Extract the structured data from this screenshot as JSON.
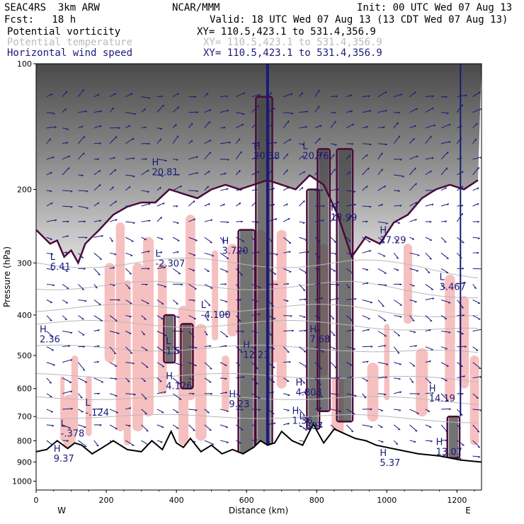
{
  "header": {
    "model": "SEAC4RS  3km ARW",
    "org": "NCAR/MMM",
    "init": "Init: 00 UTC Wed 07 Aug 13",
    "fcst": "Fcst:   18 h",
    "valid": "Valid: 18 UTC Wed 07 Aug 13 (13 CDT Wed 07 Aug 13)"
  },
  "legend": [
    {
      "name": "Potential vorticity",
      "xy": "XY= 110.5,423.1 to 531.4,356.9",
      "color": "#000000"
    },
    {
      "name": "Potential temperature",
      "xy": "XY= 110.5,423.1 to 531.4,356.9",
      "color": "#bbbbbb"
    },
    {
      "name": "Horizontal wind speed",
      "xy": "XY= 110.5,423.1 to 531.4,356.9",
      "color": "#1a1a7a"
    }
  ],
  "colors": {
    "pv_shade_pink": "#f7c0c0",
    "pv_contour": "#4a0a3a",
    "pv_dark_fill": "#444444",
    "theta_contour": "#b8b8b8",
    "wind_barbs": "#1a1a7a",
    "terrain": "#000000"
  },
  "chart_data": {
    "type": "cross-section",
    "xlabel": "Distance (km)",
    "ylabel": "Pressure (hPa)",
    "xlim": [
      0,
      1270
    ],
    "ylim": [
      1050,
      100
    ],
    "y_scale": "log-pressure",
    "x_ticks": [
      0,
      200,
      400,
      600,
      800,
      1000,
      1200
    ],
    "x_tick_labels": [
      "0",
      "200",
      "400",
      "600",
      "800",
      "1000",
      "1200"
    ],
    "y_ticks": [
      100,
      200,
      300,
      400,
      500,
      600,
      700,
      800,
      900,
      1000
    ],
    "y_tick_labels": [
      "100",
      "200",
      "300",
      "400",
      "500",
      "600",
      "700",
      "800",
      "900",
      "1000"
    ],
    "end_labels": {
      "left": "W",
      "right": "E"
    },
    "terrain_surface": {
      "x": [
        0,
        30,
        60,
        90,
        110,
        130,
        160,
        190,
        220,
        260,
        300,
        330,
        360,
        385,
        400,
        420,
        440,
        470,
        500,
        530,
        560,
        590,
        620,
        640,
        660,
        680,
        700,
        730,
        760,
        790,
        820,
        850,
        880,
        910,
        940,
        970,
        1000,
        1030,
        1060,
        1090,
        1120,
        1150,
        1180,
        1210,
        1240,
        1270
      ],
      "p": [
        850,
        840,
        800,
        835,
        810,
        820,
        860,
        830,
        800,
        840,
        850,
        800,
        840,
        760,
        810,
        830,
        790,
        850,
        820,
        860,
        840,
        860,
        830,
        800,
        820,
        810,
        760,
        800,
        820,
        730,
        810,
        750,
        770,
        790,
        800,
        820,
        830,
        840,
        850,
        860,
        865,
        870,
        880,
        890,
        895,
        900
      ]
    },
    "tropopause_pv": {
      "x": [
        0,
        40,
        60,
        80,
        100,
        120,
        140,
        180,
        220,
        260,
        300,
        340,
        380,
        420,
        460,
        500,
        540,
        580,
        620,
        660,
        700,
        740,
        780,
        820,
        860,
        900,
        940,
        980,
        1020,
        1060,
        1100,
        1140,
        1180,
        1220,
        1260
      ],
      "p": [
        250,
        270,
        265,
        290,
        280,
        300,
        270,
        250,
        230,
        220,
        215,
        215,
        200,
        205,
        210,
        200,
        195,
        200,
        195,
        190,
        195,
        200,
        185,
        195,
        230,
        290,
        260,
        270,
        240,
        230,
        210,
        200,
        195,
        200,
        190
      ]
    },
    "theta_lines_p": [
      300,
      340,
      385,
      420,
      480,
      560,
      630,
      700
    ],
    "highs_lows": [
      {
        "label": "H",
        "value": "20.81",
        "x": 330,
        "p": 175
      },
      {
        "label": "H",
        "value": "20.38",
        "x": 620,
        "p": 160
      },
      {
        "label": "L",
        "value": "20.76",
        "x": 760,
        "p": 160
      },
      {
        "label": "L",
        "value": "6.41",
        "x": 40,
        "p": 295
      },
      {
        "label": "L",
        "value": "-2.307",
        "x": 340,
        "p": 290
      },
      {
        "label": "H",
        "value": "3.720",
        "x": 530,
        "p": 270
      },
      {
        "label": "H",
        "value": "13.99",
        "x": 840,
        "p": 225
      },
      {
        "label": "H",
        "value": "27.29",
        "x": 980,
        "p": 255
      },
      {
        "label": "L",
        "value": "3.467",
        "x": 1150,
        "p": 330
      },
      {
        "label": "H",
        "value": "2.36",
        "x": 10,
        "p": 440
      },
      {
        "label": "L",
        "value": "-4.100",
        "x": 470,
        "p": 385
      },
      {
        "label": "H",
        "value": "7.68",
        "x": 780,
        "p": 440
      },
      {
        "label": "L",
        "value": "1.5",
        "x": 370,
        "p": 470
      },
      {
        "label": "H",
        "value": "12.21",
        "x": 590,
        "p": 480
      },
      {
        "label": "H",
        "value": "4.126",
        "x": 370,
        "p": 570
      },
      {
        "label": "H",
        "value": "9.23",
        "x": 550,
        "p": 630
      },
      {
        "label": "H",
        "value": "4.803",
        "x": 740,
        "p": 590
      },
      {
        "label": "H",
        "value": "14.19",
        "x": 1120,
        "p": 610
      },
      {
        "label": "L",
        "value": "-.124",
        "x": 140,
        "p": 660
      },
      {
        "label": "L",
        "value": "-.378",
        "x": 70,
        "p": 740
      },
      {
        "label": "H",
        "value": "1.36",
        "x": 730,
        "p": 690
      },
      {
        "label": "L",
        "value": "-.307",
        "x": 750,
        "p": 710
      },
      {
        "label": "H",
        "value": "9.37",
        "x": 50,
        "p": 850
      },
      {
        "label": "H",
        "value": "5.37",
        "x": 980,
        "p": 870
      },
      {
        "label": "H",
        "value": "13.07",
        "x": 1140,
        "p": 820
      }
    ],
    "wind_barbs": "plan-view wind vectors at grid points; strong column near x=660 km extending 100-1000 hPa"
  }
}
